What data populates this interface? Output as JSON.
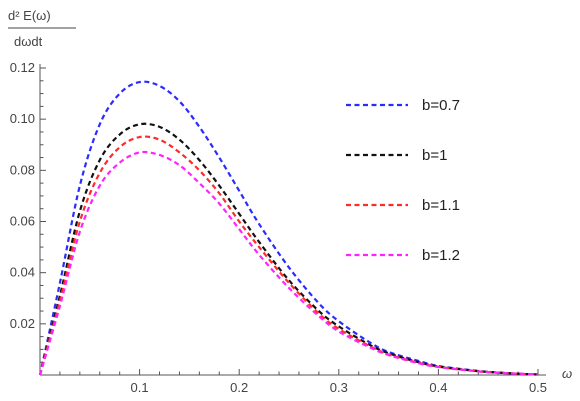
{
  "chart_data": {
    "type": "line",
    "title": "",
    "ylabel_numerator": "d² E(ω)",
    "ylabel_denominator": "dωdt",
    "xlabel": "ω",
    "xlim": [
      0,
      0.5
    ],
    "ylim": [
      0,
      0.12
    ],
    "x_ticks": [
      0.1,
      0.2,
      0.3,
      0.4,
      0.5
    ],
    "x_tick_labels": [
      "0.1",
      "0.2",
      "0.3",
      "0.4",
      "0.5"
    ],
    "y_ticks": [
      0.02,
      0.04,
      0.06,
      0.08,
      0.1,
      0.12
    ],
    "y_tick_labels": [
      "0.02",
      "0.04",
      "0.06",
      "0.08",
      "0.10",
      "0.12"
    ],
    "grid": false,
    "legend_position": "right",
    "x": [
      0,
      0.02,
      0.04,
      0.06,
      0.08,
      0.1,
      0.12,
      0.14,
      0.16,
      0.18,
      0.2,
      0.22,
      0.25,
      0.28,
      0.3,
      0.33,
      0.35,
      0.38,
      0.4,
      0.43,
      0.45,
      0.48,
      0.5
    ],
    "series": [
      {
        "name": "b=0.7",
        "color": "#2b2bff",
        "values": [
          0,
          0.036,
          0.074,
          0.098,
          0.11,
          0.1145,
          0.113,
          0.107,
          0.097,
          0.085,
          0.072,
          0.059,
          0.042,
          0.028,
          0.021,
          0.013,
          0.009,
          0.0055,
          0.0035,
          0.002,
          0.0012,
          0.0005,
          0.0002
        ]
      },
      {
        "name": "b=1",
        "color": "#111111",
        "values": [
          0,
          0.031,
          0.064,
          0.084,
          0.094,
          0.098,
          0.097,
          0.092,
          0.084,
          0.074,
          0.063,
          0.052,
          0.037,
          0.025,
          0.019,
          0.012,
          0.0085,
          0.005,
          0.0033,
          0.0019,
          0.0012,
          0.0005,
          0.0002
        ]
      },
      {
        "name": "b=1.1",
        "color": "#ff2a2a",
        "values": [
          0,
          0.029,
          0.06,
          0.079,
          0.089,
          0.093,
          0.092,
          0.087,
          0.08,
          0.071,
          0.06,
          0.05,
          0.036,
          0.024,
          0.018,
          0.0115,
          0.008,
          0.0048,
          0.0032,
          0.0018,
          0.0011,
          0.0005,
          0.0002
        ]
      },
      {
        "name": "b=1.2",
        "color": "#ff22ff",
        "values": [
          0,
          0.027,
          0.056,
          0.074,
          0.083,
          0.087,
          0.086,
          0.082,
          0.075,
          0.067,
          0.057,
          0.047,
          0.034,
          0.023,
          0.017,
          0.011,
          0.0078,
          0.0046,
          0.0031,
          0.0018,
          0.0011,
          0.0005,
          0.0002
        ]
      }
    ]
  }
}
